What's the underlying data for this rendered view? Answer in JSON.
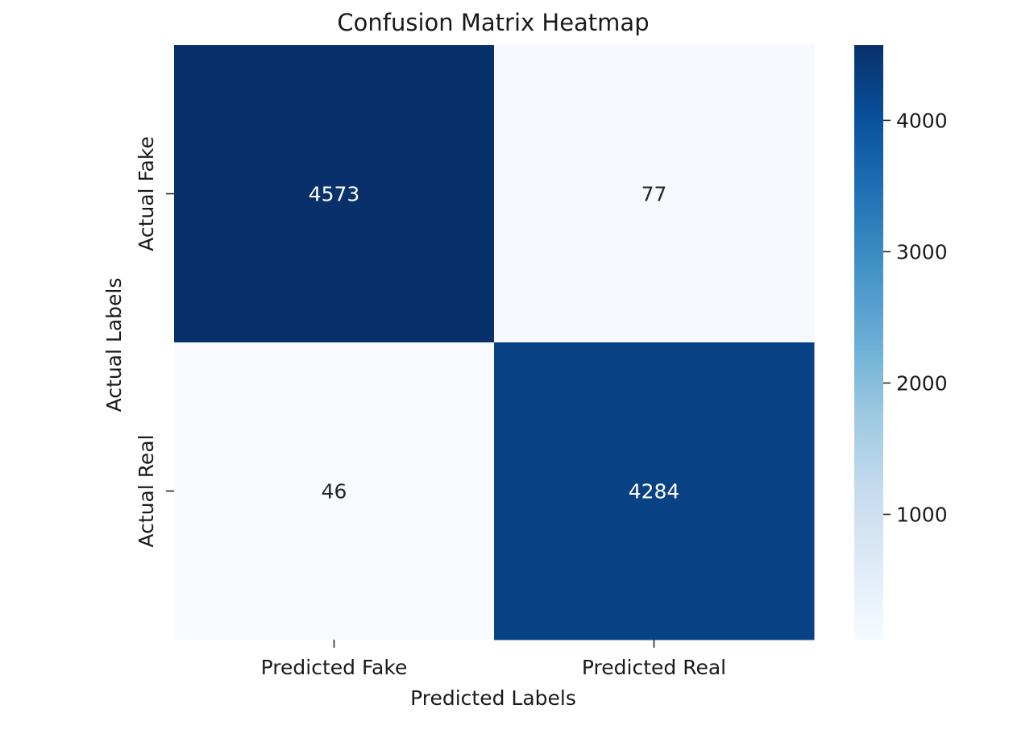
{
  "chart_data": {
    "type": "heatmap",
    "title": "Confusion Matrix Heatmap",
    "xlabel": "Predicted Labels",
    "ylabel": "Actual Labels",
    "x_categories": [
      "Predicted Fake",
      "Predicted Real"
    ],
    "y_categories": [
      "Actual Fake",
      "Actual Real"
    ],
    "values": [
      [
        4573,
        77
      ],
      [
        46,
        4284
      ]
    ],
    "colormap": "Blues",
    "colorbar": {
      "min": 46,
      "max": 4573,
      "ticks": [
        1000,
        2000,
        3000,
        4000
      ],
      "tick_labels": [
        "1000",
        "2000",
        "3000",
        "4000"
      ],
      "colors": [
        "#f7fbff",
        "#deebf7",
        "#c6dbef",
        "#9ecae1",
        "#6baed6",
        "#4292c6",
        "#2171b5",
        "#08519c",
        "#08306b"
      ]
    },
    "grid": false
  }
}
